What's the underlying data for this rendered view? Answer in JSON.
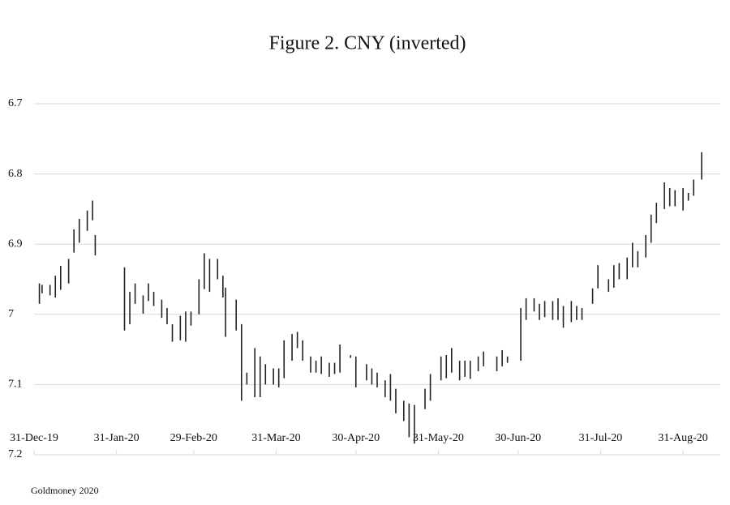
{
  "chart_data": {
    "type": "range-bar",
    "title": "Figure 2. CNY (inverted)",
    "footnote": "Goldmoney 2020",
    "inverted": true,
    "grid": true,
    "color": "#222222",
    "ylim": [
      6.7,
      7.2
    ],
    "yticks": [
      6.7,
      6.8,
      6.9,
      7,
      7.1,
      7.2
    ],
    "xlim": [
      "2019-12-31",
      "2020-09-14"
    ],
    "xticks": [
      {
        "value": "2019-12-31",
        "label": "31-Dec-19"
      },
      {
        "value": "2020-01-31",
        "label": "31-Jan-20"
      },
      {
        "value": "2020-02-29",
        "label": "29-Feb-20"
      },
      {
        "value": "2020-03-31",
        "label": "31-Mar-20"
      },
      {
        "value": "2020-04-30",
        "label": "30-Apr-20"
      },
      {
        "value": "2020-05-31",
        "label": "31-May-20"
      },
      {
        "value": "2020-06-30",
        "label": "30-Jun-20"
      },
      {
        "value": "2020-07-31",
        "label": "31-Jul-20"
      },
      {
        "value": "2020-08-31",
        "label": "31-Aug-20"
      }
    ],
    "x": [
      "2020-01-02",
      "2020-01-03",
      "2020-01-06",
      "2020-01-08",
      "2020-01-10",
      "2020-01-13",
      "2020-01-15",
      "2020-01-17",
      "2020-01-20",
      "2020-01-22",
      "2020-01-23",
      "2020-01-24",
      "2020-01-28",
      "2020-01-31",
      "2020-02-03",
      "2020-02-05",
      "2020-02-07",
      "2020-02-10",
      "2020-02-12",
      "2020-02-14",
      "2020-02-17",
      "2020-02-19",
      "2020-02-21",
      "2020-02-24",
      "2020-02-26",
      "2020-02-28",
      "2020-03-02",
      "2020-03-04",
      "2020-03-06",
      "2020-03-09",
      "2020-03-11",
      "2020-03-12",
      "2020-03-16",
      "2020-03-18",
      "2020-03-20",
      "2020-03-23",
      "2020-03-25",
      "2020-03-27",
      "2020-03-30",
      "2020-04-01",
      "2020-04-03",
      "2020-04-06",
      "2020-04-08",
      "2020-04-10",
      "2020-04-13",
      "2020-04-15",
      "2020-04-17",
      "2020-04-20",
      "2020-04-22",
      "2020-04-24",
      "2020-04-28",
      "2020-04-30",
      "2020-05-04",
      "2020-05-06",
      "2020-05-08",
      "2020-05-11",
      "2020-05-13",
      "2020-05-15",
      "2020-05-18",
      "2020-05-20",
      "2020-05-22",
      "2020-05-26",
      "2020-05-28",
      "2020-06-01",
      "2020-06-03",
      "2020-06-05",
      "2020-06-08",
      "2020-06-10",
      "2020-06-12",
      "2020-06-15",
      "2020-06-17",
      "2020-06-19",
      "2020-06-22",
      "2020-06-24",
      "2020-06-26",
      "2020-07-01",
      "2020-07-03",
      "2020-07-06",
      "2020-07-08",
      "2020-07-10",
      "2020-07-13",
      "2020-07-15",
      "2020-07-17",
      "2020-07-20",
      "2020-07-22",
      "2020-07-24",
      "2020-07-28",
      "2020-07-30",
      "2020-08-03",
      "2020-08-05",
      "2020-08-07",
      "2020-08-10",
      "2020-08-12",
      "2020-08-14",
      "2020-08-17",
      "2020-08-19",
      "2020-08-21",
      "2020-08-24",
      "2020-08-26",
      "2020-08-28",
      "2020-08-31",
      "2020-09-02",
      "2020-09-04",
      "2020-09-07"
    ],
    "low": [
      6.956,
      6.958,
      6.958,
      6.945,
      6.931,
      6.921,
      6.879,
      6.864,
      6.852,
      6.838,
      6.887,
      6.933,
      6.934,
      6.934,
      6.933,
      6.968,
      6.956,
      6.973,
      6.956,
      6.968,
      6.979,
      6.991,
      7.014,
      7.002,
      6.996,
      6.996,
      6.95,
      6.913,
      6.921,
      6.921,
      6.945,
      6.962,
      6.979,
      7.014,
      7.083,
      7.048,
      7.06,
      7.071,
      7.077,
      7.077,
      7.037,
      7.028,
      7.025,
      7.037,
      7.06,
      7.066,
      7.06,
      7.069,
      7.069,
      7.043,
      7.058,
      7.06,
      7.071,
      7.077,
      7.083,
      7.094,
      7.085,
      7.106,
      7.123,
      7.127,
      7.129,
      7.106,
      7.085,
      7.06,
      7.058,
      7.048,
      7.066,
      7.066,
      7.066,
      7.06,
      7.053,
      7.081,
      7.06,
      7.051,
      7.06,
      6.991,
      6.977,
      6.977,
      6.985,
      6.981,
      6.981,
      6.977,
      6.988,
      6.981,
      6.988,
      6.991,
      6.963,
      6.93,
      6.95,
      6.93,
      6.927,
      6.919,
      6.898,
      6.91,
      6.887,
      6.858,
      6.841,
      6.812,
      6.82,
      6.823,
      6.82,
      6.827,
      6.808,
      6.769
    ],
    "high": [
      6.985,
      6.97,
      6.973,
      6.976,
      6.965,
      6.956,
      6.912,
      6.898,
      6.881,
      6.866,
      6.916,
      6.933,
      6.934,
      6.934,
      7.023,
      7.014,
      6.985,
      6.999,
      6.981,
      6.988,
      7.005,
      7.014,
      7.039,
      7.037,
      7.039,
      7.016,
      7.0,
      6.964,
      6.968,
      6.95,
      6.976,
      7.032,
      7.023,
      7.123,
      7.1,
      7.118,
      7.118,
      7.1,
      7.1,
      7.104,
      7.091,
      7.066,
      7.048,
      7.066,
      7.083,
      7.083,
      7.085,
      7.089,
      7.085,
      7.083,
      7.062,
      7.104,
      7.094,
      7.1,
      7.104,
      7.118,
      7.123,
      7.141,
      7.152,
      7.175,
      7.184,
      7.135,
      7.123,
      7.094,
      7.091,
      7.083,
      7.094,
      7.089,
      7.092,
      7.081,
      7.074,
      7.081,
      7.081,
      7.074,
      7.069,
      7.066,
      7.008,
      6.996,
      7.008,
      7.004,
      7.008,
      7.008,
      7.019,
      7.011,
      7.008,
      7.008,
      6.985,
      6.963,
      6.968,
      6.962,
      6.95,
      6.95,
      6.933,
      6.933,
      6.919,
      6.898,
      6.87,
      6.85,
      6.846,
      6.846,
      6.852,
      6.838,
      6.831,
      6.808
    ]
  }
}
